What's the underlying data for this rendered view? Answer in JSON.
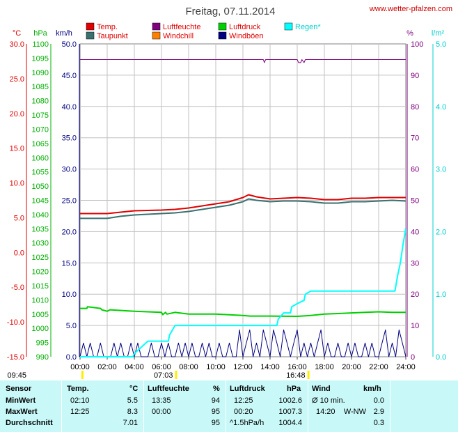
{
  "page_title": "Freitag, 07.11.2014",
  "site_url": "www.wetter-pfalzen.com",
  "colors": {
    "temp": "#e00000",
    "dew": "#3a7070",
    "humidity": "#800080",
    "windchill": "#ff8000",
    "pressure": "#00d000",
    "gust": "#000080",
    "rain": "#00ffff",
    "grid": "#c0c0c0"
  },
  "chart_data": {
    "type": "line",
    "title": "Freitag, 07.11.2014",
    "x_tick_labels": [
      "00:00",
      "02:00",
      "04:00",
      "06:00",
      "08:00",
      "10:00",
      "12:00",
      "14:00",
      "16:00",
      "18:00",
      "20:00",
      "22:00",
      "24:00"
    ],
    "x_range_hours": [
      0,
      24
    ],
    "axes": {
      "temp": {
        "unit": "°C",
        "range": [
          -15,
          30
        ],
        "ticks": [
          "30.0",
          "25.0",
          "20.0",
          "15.0",
          "10.0",
          "5.0",
          "0.0",
          "-5.0",
          "-10.0",
          "-15.0"
        ]
      },
      "pressure": {
        "unit": "hPa",
        "range": [
          990,
          1100
        ],
        "ticks": [
          "1100",
          "1095",
          "1090",
          "1085",
          "1080",
          "1075",
          "1070",
          "1065",
          "1060",
          "1055",
          "1050",
          "1045",
          "1040",
          "1035",
          "1030",
          "1025",
          "1020",
          "1015",
          "1010",
          "1005",
          "1000",
          "995",
          "990"
        ]
      },
      "wind": {
        "unit": "km/h",
        "range": [
          0,
          50
        ],
        "ticks": [
          "50.0",
          "45.0",
          "40.0",
          "35.0",
          "30.0",
          "25.0",
          "20.0",
          "15.0",
          "10.0",
          "5.0",
          "0.0"
        ]
      },
      "humidity": {
        "unit": "%",
        "range": [
          0,
          100
        ],
        "ticks": [
          "100",
          "90",
          "80",
          "70",
          "60",
          "50",
          "40",
          "30",
          "20",
          "10",
          "0"
        ]
      },
      "rain": {
        "unit": "l/m²",
        "range": [
          0,
          5
        ],
        "ticks": [
          "5.0",
          "4.0",
          "3.0",
          "2.0",
          "1.0",
          "0.0"
        ]
      }
    },
    "legend": [
      "Temp.",
      "Taupunkt",
      "Luftfeuchte",
      "Windchill",
      "Luftdruck",
      "Windböen",
      "Regen*"
    ],
    "series": [
      {
        "name": "Temp.",
        "axis": "temp",
        "x": [
          0,
          2,
          3,
          4,
          6,
          7,
          8,
          9,
          10,
          11,
          12,
          12.42,
          13,
          14,
          15,
          16,
          17,
          18,
          19,
          20,
          21,
          22,
          23,
          24
        ],
        "y": [
          5.6,
          5.6,
          5.8,
          6.0,
          6.1,
          6.2,
          6.4,
          6.7,
          7.0,
          7.3,
          7.9,
          8.3,
          8.0,
          7.7,
          7.8,
          7.9,
          7.8,
          7.6,
          7.6,
          7.8,
          7.8,
          7.9,
          7.9,
          7.9
        ]
      },
      {
        "name": "Taupunkt",
        "axis": "temp",
        "x": [
          0,
          2,
          3,
          4,
          6,
          7,
          8,
          9,
          10,
          11,
          12,
          12.42,
          13,
          14,
          15,
          16,
          17,
          18,
          19,
          20,
          21,
          22,
          23,
          24
        ],
        "y": [
          4.9,
          4.9,
          5.2,
          5.4,
          5.6,
          5.7,
          5.9,
          6.2,
          6.5,
          6.8,
          7.3,
          7.7,
          7.5,
          7.3,
          7.4,
          7.4,
          7.3,
          7.1,
          7.1,
          7.3,
          7.3,
          7.4,
          7.5,
          7.4
        ]
      },
      {
        "name": "Luftfeuchte",
        "axis": "humidity",
        "x": [
          0,
          13.5,
          13.58,
          13.67,
          16,
          16.1,
          16.25,
          16.35,
          16.5,
          16.6,
          24
        ],
        "y": [
          95,
          95,
          94,
          95,
          95,
          94,
          94,
          95,
          94,
          95,
          95
        ]
      },
      {
        "name": "Luftdruck",
        "axis": "pressure",
        "x": [
          0,
          0.5,
          0.55,
          1.5,
          1.6,
          2.0,
          2.2,
          4,
          6,
          6.1,
          6.3,
          6.4,
          7,
          8,
          10,
          12,
          12.5,
          14,
          16,
          17,
          18,
          19,
          20,
          21,
          22,
          23,
          24
        ],
        "y": [
          1007,
          1007,
          1007.6,
          1007,
          1006.5,
          1006,
          1006.5,
          1006,
          1005.6,
          1004.8,
          1005.6,
          1005,
          1005.6,
          1005,
          1005,
          1004.5,
          1004.3,
          1004.3,
          1004.2,
          1004.5,
          1005,
          1005.2,
          1005.4,
          1005.6,
          1005.8,
          1005.6,
          1005.6
        ]
      },
      {
        "name": "Regen*",
        "axis": "rain",
        "x": [
          0,
          3.9,
          4.0,
          4.5,
          5.0,
          6.5,
          6.6,
          7.0,
          8.0,
          9.0,
          10.0,
          12.0,
          14.0,
          14.5,
          14.6,
          15.0,
          15.5,
          15.6,
          16.0,
          16.5,
          16.6,
          17.0,
          18.0,
          19.0,
          20.0,
          21.0,
          22.0,
          23.0,
          23.2,
          23.4,
          23.6,
          23.8,
          24.0
        ],
        "y": [
          0,
          0,
          0.05,
          0.15,
          0.25,
          0.25,
          0.35,
          0.5,
          0.5,
          0.5,
          0.5,
          0.5,
          0.5,
          0.5,
          0.6,
          0.7,
          0.7,
          0.8,
          0.85,
          0.9,
          1.0,
          1.05,
          1.05,
          1.05,
          1.05,
          1.05,
          1.05,
          1.05,
          1.05,
          1.3,
          1.5,
          1.8,
          2.05
        ]
      },
      {
        "name": "Windböen",
        "axis": "wind",
        "x": [
          0,
          0.25,
          0.5,
          0.75,
          1,
          1.25,
          1.5,
          1.75,
          2,
          2.25,
          2.5,
          2.75,
          3,
          3.25,
          3.5,
          3.75,
          4,
          4.25,
          4.5,
          4.75,
          5,
          5.25,
          5.5,
          5.75,
          6,
          6.25,
          6.5,
          6.75,
          7,
          7.25,
          7.5,
          7.75,
          8,
          8.25,
          8.5,
          8.75,
          9,
          9.25,
          9.5,
          9.75,
          10,
          10.25,
          10.5,
          10.75,
          11,
          11.25,
          11.5,
          11.75,
          12,
          12.25,
          12.5,
          12.75,
          13,
          13.25,
          13.5,
          13.75,
          14,
          14.25,
          14.5,
          14.75,
          15,
          15.25,
          15.5,
          15.75,
          16,
          16.25,
          16.5,
          16.75,
          17,
          17.25,
          17.5,
          17.75,
          18,
          18.25,
          18.5,
          18.75,
          19,
          19.25,
          19.5,
          19.75,
          20,
          20.25,
          20.5,
          20.75,
          21,
          21.25,
          21.5,
          21.75,
          22,
          22.25,
          22.5,
          22.75,
          23,
          23.25,
          23.5,
          23.75,
          24
        ],
        "y": [
          0,
          2.2,
          0,
          2.2,
          0,
          0,
          2.2,
          0,
          0,
          0,
          2.2,
          0,
          2.2,
          0,
          0,
          2.2,
          0,
          2.2,
          0,
          0,
          0,
          2.2,
          0,
          0,
          2.2,
          0,
          2.2,
          0,
          0,
          2.2,
          0,
          2.2,
          0,
          2.2,
          0,
          0,
          2.2,
          0,
          2.2,
          0,
          0,
          2.2,
          0,
          0,
          2.2,
          0,
          0,
          4.3,
          0,
          2.2,
          4.3,
          0,
          2.2,
          0,
          4.3,
          2.2,
          0,
          4.3,
          2.2,
          0,
          4.3,
          2.2,
          0,
          2.2,
          4.3,
          0,
          2.2,
          0,
          2.2,
          0,
          2.2,
          4.3,
          0,
          2.2,
          0,
          0,
          2.2,
          0,
          0,
          2.2,
          0,
          2.2,
          0,
          0,
          2.2,
          0,
          2.2,
          0,
          0,
          2.2,
          4.3,
          0,
          2.2,
          0,
          4.3,
          2.2,
          0
        ]
      }
    ],
    "time_markers": [
      {
        "label": "09:45",
        "hour": 0.15
      },
      {
        "label": "07:03",
        "hour": 7.05
      },
      {
        "label": "16:48",
        "hour": 16.8
      }
    ]
  },
  "stats": {
    "headers": {
      "sensor": "Sensor",
      "temp": "Temp.",
      "temp_unit": "°C",
      "hum": "Luftfeuchte",
      "hum_unit": "%",
      "press": "Luftdruck",
      "press_unit": "hPa",
      "wind": "Wind",
      "wind_unit": "km/h"
    },
    "rows": [
      {
        "label": "MinWert",
        "temp_time": "02:10",
        "temp": "5.5",
        "hum_time": "13:35",
        "hum": "94",
        "press_time": "12:25",
        "press": "1002.6",
        "wind_time": "Ø 10 min.",
        "wind_dir": "",
        "wind": "0.0"
      },
      {
        "label": "MaxWert",
        "temp_time": "12:25",
        "temp": "8.3",
        "hum_time": "00:00",
        "hum": "95",
        "press_time": "00:20",
        "press": "1007.3",
        "wind_time": "14:20",
        "wind_dir": "W-NW",
        "wind": "2.9"
      },
      {
        "label": "Durchschnitt",
        "temp_time": "",
        "temp": "7.01",
        "hum_time": "",
        "hum": "95",
        "press_time": "^1.5hPa/h",
        "press": "1004.4",
        "wind_time": "",
        "wind_dir": "",
        "wind": "0.3"
      }
    ]
  }
}
